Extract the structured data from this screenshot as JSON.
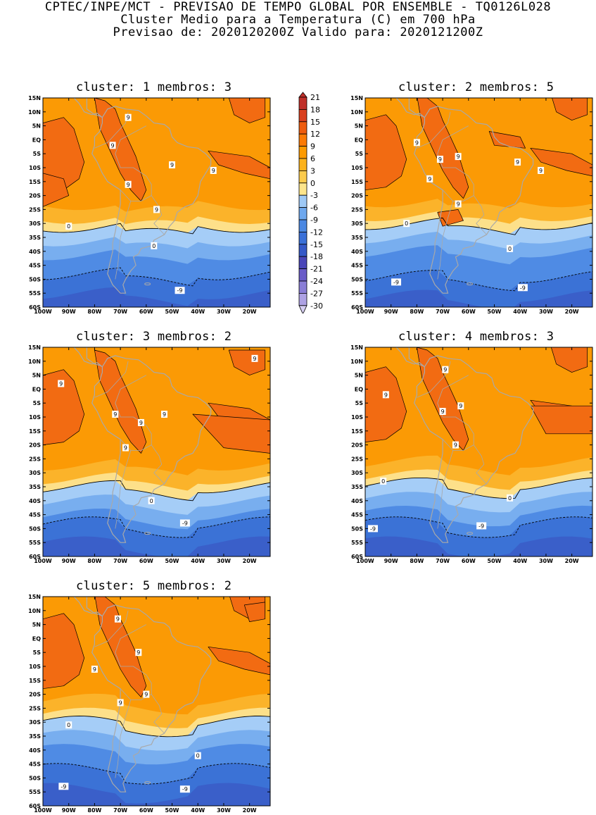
{
  "header": {
    "line1": "CPTEC/INPE/MCT - PREVISAO DE TEMPO GLOBAL POR ENSEMBLE - TQ0126L028",
    "line2": "Cluster Medio para a Temperatura (C) em 700 hPa",
    "line3": "Previsao de: 2020120200Z   Valido para: 2020121200Z"
  },
  "panels": [
    {
      "title": "cluster: 1   membros: 3",
      "zero_line_lat": -31,
      "minus9_line_lat": -48,
      "labels": [
        "9",
        "9",
        "9",
        "9",
        "9",
        "9",
        "0",
        "0",
        "-9"
      ]
    },
    {
      "title": "cluster: 2   membros: 5",
      "zero_line_lat": -30,
      "minus9_line_lat": -49,
      "labels": [
        "9",
        "9",
        "9",
        "9",
        "9",
        "9",
        "9",
        "0",
        "0",
        "-9",
        "-9"
      ]
    },
    {
      "title": "cluster: 3   membros: 2",
      "zero_line_lat": -35,
      "minus9_line_lat": -48,
      "labels": [
        "9",
        "9",
        "9",
        "9",
        "9",
        "9",
        "0",
        "-9"
      ]
    },
    {
      "title": "cluster: 4   membros: 3",
      "zero_line_lat": -34,
      "minus9_line_lat": -48,
      "labels": [
        "9",
        "9",
        "9",
        "9",
        "9",
        "0",
        "0",
        "-9",
        "-9"
      ]
    },
    {
      "title": "cluster: 5   membros: 2",
      "zero_line_lat": -30,
      "minus9_line_lat": -47,
      "labels": [
        "9",
        "9",
        "9",
        "9",
        "9",
        "0",
        "0",
        "-9",
        "-9"
      ]
    }
  ],
  "axes": {
    "lat_labels": [
      "15N",
      "10N",
      "5N",
      "EQ",
      "5S",
      "10S",
      "15S",
      "20S",
      "25S",
      "30S",
      "35S",
      "40S",
      "45S",
      "50S",
      "55S",
      "60S"
    ],
    "lon_labels": [
      "100W",
      "90W",
      "80W",
      "70W",
      "60W",
      "50W",
      "40W",
      "30W",
      "20W"
    ]
  },
  "colorbar": {
    "levels": [
      "21",
      "18",
      "15",
      "12",
      "9",
      "6",
      "3",
      "0",
      "-3",
      "-6",
      "-9",
      "-12",
      "-15",
      "-18",
      "-21",
      "-24",
      "-27",
      "-30"
    ],
    "colors": [
      "#c0302a",
      "#d93f1e",
      "#ee5c0e",
      "#fb7a05",
      "#fd9a00",
      "#fcb21c",
      "#fccb4c",
      "#fde58c",
      "#9ec9f6",
      "#6ea8ee",
      "#4b88e2",
      "#3a70d8",
      "#3559c8",
      "#4a46b9",
      "#6a5cc8",
      "#8a7ed6",
      "#aea2e4",
      "#d6cef2"
    ]
  },
  "style": {
    "warm9": "#f26b12",
    "warm6": "#fb9a05",
    "warm3": "#fbb32a",
    "warm0": "#fde08a",
    "cool0": "#a5cdf7",
    "cool3": "#78aeef",
    "cool6": "#4f8be4",
    "cool9": "#3b72d6",
    "cool12": "#3a5fc9",
    "border": "#a9a9a9"
  }
}
